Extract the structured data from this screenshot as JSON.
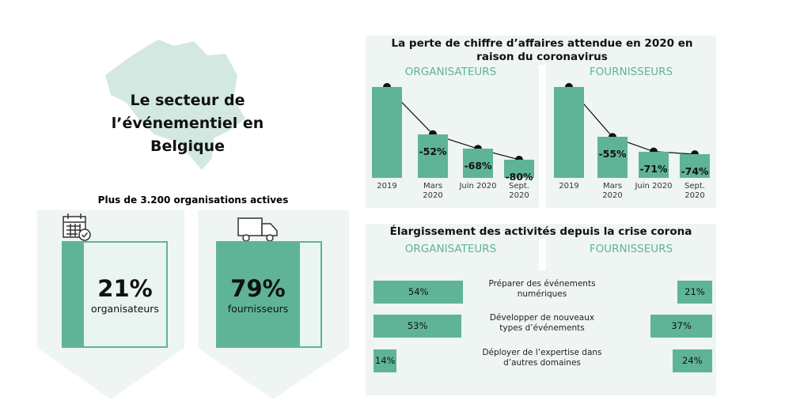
{
  "header": {
    "title": "Le secteur de l’événementiel en Belgique"
  },
  "loss_title": "La perte de chiffre d’affaires attendue en 2020 en raison du coronavirus",
  "expansion_title": "Élargissement des activités depuis la crise corona",
  "chart_data": [
    {
      "type": "share",
      "title": "Plus de 3.200 organisations actives",
      "categories": [
        "organisateurs",
        "fournisseurs"
      ],
      "values": [
        21,
        79
      ],
      "value_labels": [
        "21%",
        "79%"
      ],
      "xlim": [
        0,
        100
      ],
      "color": "#5fb497"
    },
    {
      "type": "bar_line",
      "title": "ORGANISATEURS",
      "categories": [
        "2019",
        "Mars 2020",
        "Juin 2020",
        "Sept. 2020"
      ],
      "values": [
        0,
        -52,
        -68,
        -80
      ],
      "value_labels": [
        null,
        "-52%",
        "-68%",
        "-80%"
      ],
      "ylim": [
        -100,
        0
      ],
      "color": "#5fb497"
    },
    {
      "type": "bar_line",
      "title": "FOURNISSEURS",
      "categories": [
        "2019",
        "Mars 2020",
        "Juin 2020",
        "Sept. 2020"
      ],
      "values": [
        0,
        -55,
        -71,
        -74
      ],
      "value_labels": [
        null,
        "-55%",
        "-71%",
        "-74%"
      ],
      "ylim": [
        -100,
        0
      ],
      "color": "#5fb497"
    },
    {
      "type": "butterfly",
      "categories": [
        "Préparer des événements numériques",
        "Développer de nouveaux types d’événements",
        "Déployer de l’expertise dans d’autres domaines"
      ],
      "series": [
        {
          "name": "ORGANISATEURS",
          "color": "#5fb497",
          "values": [
            54,
            53,
            14
          ],
          "value_labels": [
            "54%",
            "53%",
            "14%"
          ]
        },
        {
          "name": "FOURNISSEURS",
          "color": "#5fb497",
          "values": [
            21,
            37,
            24
          ],
          "value_labels": [
            "21%",
            "37%",
            "24%"
          ]
        }
      ],
      "xlim": [
        0,
        100
      ]
    }
  ]
}
